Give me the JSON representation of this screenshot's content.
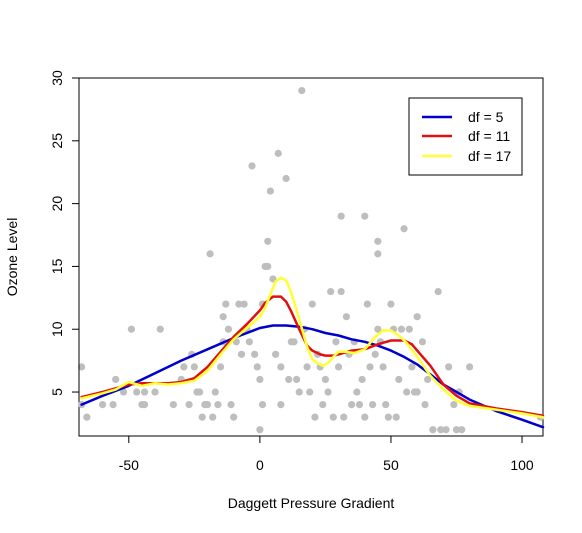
{
  "chart_data": {
    "type": "scatter",
    "title": "",
    "xlabel": "Daggett Pressure Gradient",
    "ylabel": "Ozone Level",
    "xlim": [
      -69,
      108
    ],
    "ylim": [
      1.5,
      30
    ],
    "xticks": [
      -50,
      0,
      50,
      100
    ],
    "yticks": [
      5,
      10,
      15,
      20,
      25,
      30
    ],
    "grid": false,
    "legend_position": "top-right",
    "point_color": "#bebebe",
    "points": [
      [
        -68,
        7
      ],
      [
        -66,
        3
      ],
      [
        -68,
        4
      ],
      [
        -60,
        4
      ],
      [
        -56,
        4
      ],
      [
        -55,
        6
      ],
      [
        -52,
        5
      ],
      [
        -49,
        10
      ],
      [
        -47,
        5
      ],
      [
        -45,
        4
      ],
      [
        -44,
        4
      ],
      [
        -44,
        5
      ],
      [
        -40,
        5
      ],
      [
        -38,
        10
      ],
      [
        -33,
        4
      ],
      [
        -30,
        6
      ],
      [
        -29,
        7
      ],
      [
        -27,
        4
      ],
      [
        -26,
        8
      ],
      [
        -25,
        7
      ],
      [
        -24,
        5
      ],
      [
        -23,
        5
      ],
      [
        -22,
        3
      ],
      [
        -21,
        4
      ],
      [
        -20,
        4
      ],
      [
        -19,
        16
      ],
      [
        -18,
        3
      ],
      [
        -17,
        5
      ],
      [
        -16,
        4
      ],
      [
        -15,
        7
      ],
      [
        -14,
        9
      ],
      [
        -14,
        11
      ],
      [
        -13,
        12
      ],
      [
        -12,
        10
      ],
      [
        -11,
        4
      ],
      [
        -10,
        3
      ],
      [
        -9,
        9
      ],
      [
        -8,
        12
      ],
      [
        -7,
        8
      ],
      [
        -6,
        12
      ],
      [
        -5,
        10
      ],
      [
        -4,
        9
      ],
      [
        -3,
        23
      ],
      [
        -2,
        8
      ],
      [
        -1,
        7
      ],
      [
        0,
        6
      ],
      [
        0,
        2
      ],
      [
        1,
        12
      ],
      [
        1,
        4
      ],
      [
        2,
        15
      ],
      [
        3,
        17
      ],
      [
        3,
        15
      ],
      [
        4,
        21
      ],
      [
        5,
        14
      ],
      [
        6,
        8
      ],
      [
        7,
        24
      ],
      [
        8,
        7
      ],
      [
        8,
        4
      ],
      [
        10,
        22
      ],
      [
        11,
        6
      ],
      [
        12,
        9
      ],
      [
        13,
        9
      ],
      [
        14,
        6
      ],
      [
        15,
        5
      ],
      [
        16,
        29
      ],
      [
        17,
        10
      ],
      [
        18,
        7
      ],
      [
        19,
        5
      ],
      [
        20,
        12
      ],
      [
        21,
        3
      ],
      [
        22,
        8
      ],
      [
        23,
        7
      ],
      [
        24,
        4
      ],
      [
        25,
        6
      ],
      [
        26,
        5
      ],
      [
        27,
        13
      ],
      [
        28,
        3
      ],
      [
        29,
        9
      ],
      [
        30,
        7
      ],
      [
        31,
        13
      ],
      [
        31,
        19
      ],
      [
        32,
        3
      ],
      [
        33,
        11
      ],
      [
        34,
        8
      ],
      [
        35,
        4
      ],
      [
        36,
        9
      ],
      [
        37,
        5
      ],
      [
        38,
        4
      ],
      [
        39,
        6
      ],
      [
        40,
        19
      ],
      [
        40,
        3
      ],
      [
        41,
        12
      ],
      [
        42,
        7
      ],
      [
        43,
        4
      ],
      [
        44,
        8
      ],
      [
        45,
        10
      ],
      [
        45,
        17
      ],
      [
        45,
        16
      ],
      [
        46,
        9
      ],
      [
        47,
        7
      ],
      [
        48,
        4
      ],
      [
        49,
        3
      ],
      [
        50,
        12
      ],
      [
        51,
        10
      ],
      [
        52,
        3
      ],
      [
        53,
        6
      ],
      [
        54,
        10
      ],
      [
        55,
        18
      ],
      [
        56,
        5
      ],
      [
        57,
        10
      ],
      [
        58,
        7
      ],
      [
        59,
        5
      ],
      [
        60,
        11
      ],
      [
        60,
        5
      ],
      [
        62,
        9
      ],
      [
        63,
        4
      ],
      [
        64,
        6
      ],
      [
        66,
        2
      ],
      [
        68,
        13
      ],
      [
        69,
        2
      ],
      [
        71,
        2
      ],
      [
        72,
        7
      ],
      [
        74,
        4
      ],
      [
        75,
        2
      ],
      [
        76,
        5
      ],
      [
        77,
        2
      ],
      [
        80,
        7
      ],
      [
        107,
        3
      ]
    ],
    "series": [
      {
        "name": "df = 5",
        "color": "#0000cd",
        "x": [
          -68,
          -60,
          -50,
          -40,
          -30,
          -20,
          -10,
          0,
          5,
          10,
          15,
          20,
          25,
          30,
          35,
          40,
          45,
          50,
          55,
          60,
          65,
          70,
          75,
          80,
          90,
          100,
          108
        ],
        "y": [
          4.0,
          4.7,
          5.5,
          6.5,
          7.5,
          8.4,
          9.3,
          10.1,
          10.3,
          10.3,
          10.2,
          10.0,
          9.7,
          9.5,
          9.2,
          9.0,
          8.7,
          8.3,
          7.8,
          7.2,
          6.4,
          5.6,
          5.0,
          4.4,
          3.5,
          2.8,
          2.2
        ]
      },
      {
        "name": "df = 11",
        "color": "#e01010",
        "x": [
          -68,
          -60,
          -55,
          -50,
          -45,
          -40,
          -35,
          -30,
          -25,
          -20,
          -15,
          -10,
          -5,
          0,
          2,
          5,
          8,
          10,
          12,
          15,
          18,
          20,
          23,
          25,
          28,
          30,
          35,
          40,
          45,
          50,
          55,
          58,
          60,
          65,
          70,
          75,
          80,
          90,
          100,
          108
        ],
        "y": [
          4.6,
          5.0,
          5.3,
          5.6,
          5.7,
          5.7,
          5.7,
          5.8,
          6.1,
          7.0,
          8.2,
          9.4,
          10.4,
          11.5,
          12.1,
          12.6,
          12.6,
          12.2,
          11.4,
          10.0,
          8.7,
          8.3,
          8.0,
          7.9,
          7.9,
          8.0,
          8.3,
          8.4,
          8.8,
          9.1,
          9.1,
          8.8,
          8.3,
          7.1,
          5.6,
          4.7,
          4.1,
          3.7,
          3.4,
          3.1
        ]
      },
      {
        "name": "df = 17",
        "color": "#ffff33",
        "x": [
          -68,
          -60,
          -55,
          -50,
          -45,
          -40,
          -35,
          -30,
          -25,
          -20,
          -15,
          -10,
          -5,
          0,
          2,
          4,
          6,
          8,
          10,
          12,
          15,
          18,
          20,
          22,
          24,
          26,
          28,
          30,
          33,
          36,
          40,
          44,
          47,
          50,
          53,
          56,
          60,
          65,
          70,
          75,
          80,
          90,
          100,
          108
        ],
        "y": [
          4.5,
          4.9,
          5.2,
          5.8,
          5.5,
          5.7,
          5.6,
          5.7,
          5.9,
          6.7,
          8.0,
          9.2,
          10.1,
          11.0,
          11.7,
          12.8,
          13.8,
          14.1,
          13.9,
          12.9,
          10.8,
          8.6,
          7.6,
          7.3,
          7.1,
          7.3,
          7.8,
          8.2,
          8.2,
          8.1,
          8.4,
          9.4,
          9.9,
          9.9,
          9.5,
          8.9,
          7.8,
          6.3,
          5.2,
          4.3,
          3.9,
          3.6,
          3.3,
          3.0
        ]
      }
    ]
  }
}
